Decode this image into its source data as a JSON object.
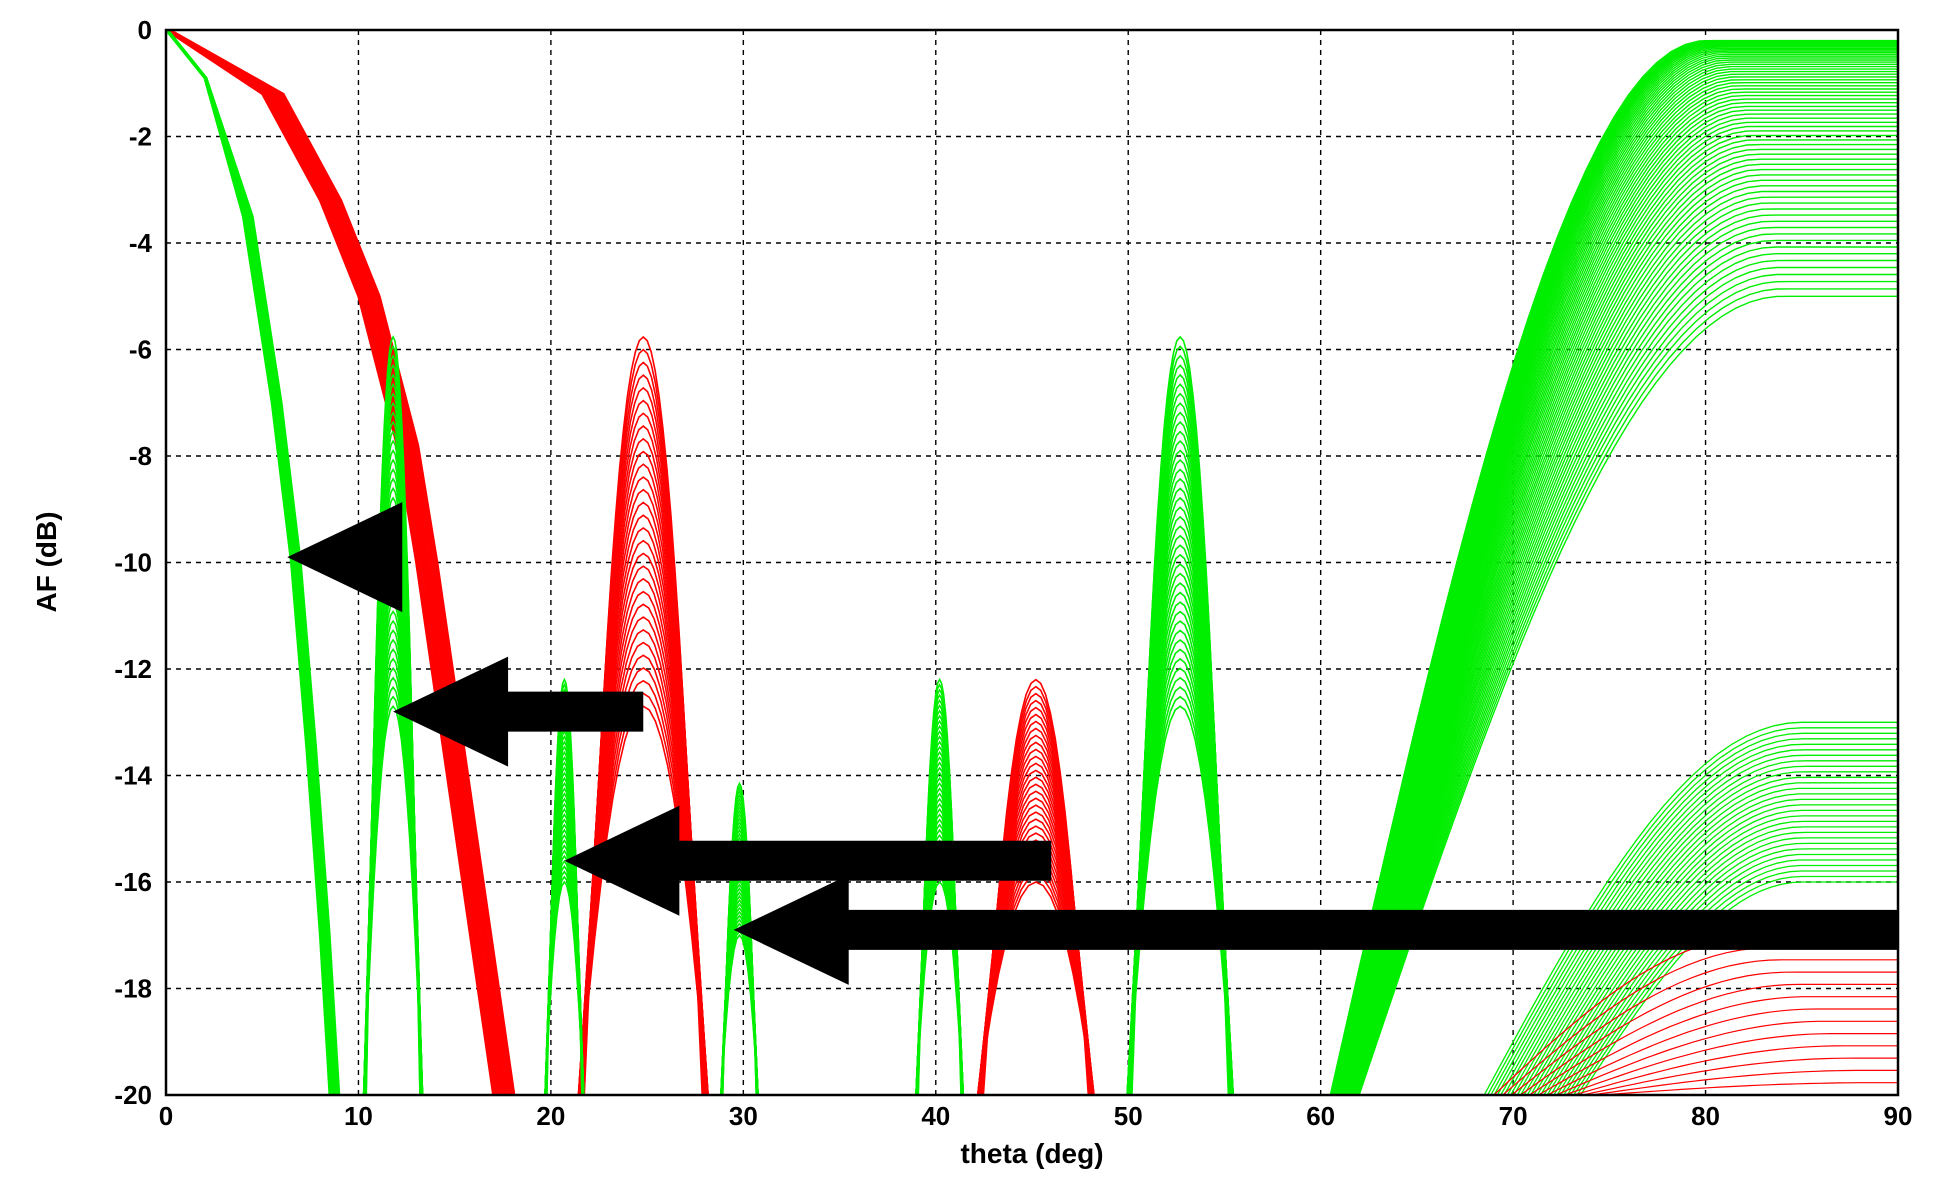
{
  "chart_data": {
    "type": "line",
    "title": "",
    "xlabel": "theta (deg)",
    "ylabel": "AF (dB)",
    "xlim": [
      0,
      90
    ],
    "ylim": [
      -20,
      0
    ],
    "xticks": [
      0,
      10,
      20,
      30,
      40,
      50,
      60,
      70,
      80,
      90
    ],
    "yticks": [
      0,
      -2,
      -4,
      -6,
      -8,
      -10,
      -12,
      -14,
      -16,
      -18,
      -20
    ],
    "grid": true,
    "legend": "none",
    "colors": {
      "red_family": "#ff0000",
      "green_family": "#00ee00",
      "arrows": "#000000"
    },
    "series": [
      {
        "color": "red",
        "description_points": [
          {
            "x": 0,
            "y": 0
          },
          {
            "x": 5,
            "y": -1.2
          },
          {
            "x": 8,
            "y": -3.2
          },
          {
            "x": 10,
            "y": -5.0
          },
          {
            "x": 12,
            "y": -7.8
          },
          {
            "x": 13,
            "y": -10.0
          },
          {
            "x": 14,
            "y": -12.5
          },
          {
            "x": 15,
            "y": -15.0
          },
          {
            "x": 16,
            "y": -17.5
          },
          {
            "x": 17,
            "y": -20
          }
        ],
        "sidelobes": [
          {
            "left": 19.5,
            "right": 30.5,
            "peak_x": 24.8,
            "peak_y": -12.7
          },
          {
            "left": 38.5,
            "right": 52.0,
            "peak_x": 45.2,
            "peak_y": -16.0
          }
        ]
      },
      {
        "color": "green",
        "description_points": [
          {
            "x": 0,
            "y": 0
          },
          {
            "x": 2,
            "y": -0.9
          },
          {
            "x": 4,
            "y": -3.5
          },
          {
            "x": 5.5,
            "y": -7.0
          },
          {
            "x": 6.5,
            "y": -10.0
          },
          {
            "x": 7.3,
            "y": -13.5
          },
          {
            "x": 8,
            "y": -17.0
          },
          {
            "x": 8.5,
            "y": -20
          }
        ],
        "sidelobes": [
          {
            "left": 9.5,
            "right": 14.5,
            "peak_x": 11.8,
            "peak_y": -12.7
          },
          {
            "left": 18.5,
            "right": 23.0,
            "peak_x": 20.7,
            "peak_y": -16.0
          },
          {
            "left": 27.5,
            "right": 32.5,
            "peak_x": 29.8,
            "peak_y": -17.0
          },
          {
            "left": 37.0,
            "right": 42.5,
            "peak_x": 40.2,
            "peak_y": -16.0
          },
          {
            "left": 48.0,
            "right": 57.0,
            "peak_x": 52.7,
            "peak_y": -12.7
          }
        ],
        "grating_lobe": {
          "start_x": 60.5,
          "plateau_from_x": 80,
          "levels_y": [
            -0.2,
            -5.0
          ]
        },
        "secondary_rise": {
          "start_x": 68.5,
          "plateau_from_x": 85,
          "levels_y": [
            -13.0,
            -16.0
          ]
        }
      }
    ],
    "annotations": [
      {
        "type": "arrow",
        "color": "black",
        "shape": "triangle-only",
        "tip_x": 6.3,
        "tip_y": -9.9
      },
      {
        "type": "arrow",
        "color": "black",
        "tip_x": 11.8,
        "tip_y": -12.8,
        "tail_x": 24.8
      },
      {
        "type": "arrow",
        "color": "black",
        "tip_x": 20.7,
        "tip_y": -15.6,
        "tail_x": 46.0
      },
      {
        "type": "arrow",
        "color": "black",
        "tip_x": 29.5,
        "tip_y": -16.9,
        "tail_x": 90.0
      }
    ]
  }
}
